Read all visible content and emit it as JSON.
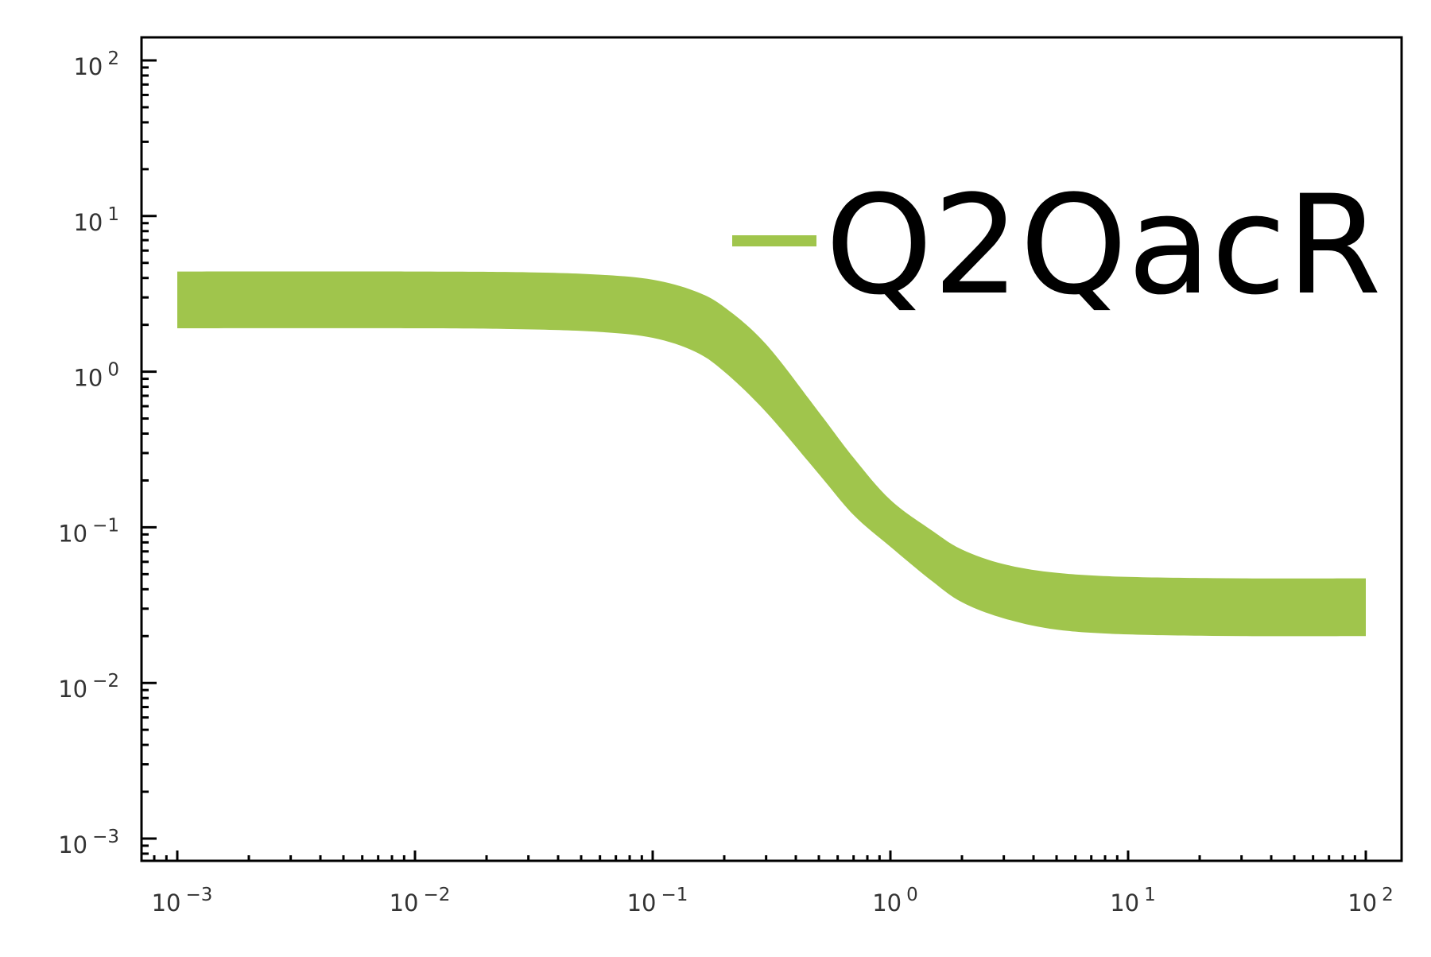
{
  "chart_data": {
    "type": "line",
    "title": "",
    "xlabel": "",
    "ylabel": "",
    "xscale": "log",
    "yscale": "log",
    "xlim": [
      0.001,
      100
    ],
    "ylim": [
      0.0007,
      200
    ],
    "grid": false,
    "legend_position": "top-right",
    "x_ticks": [
      {
        "base": "10",
        "exp": "−3"
      },
      {
        "base": "10",
        "exp": "−2"
      },
      {
        "base": "10",
        "exp": "−1"
      },
      {
        "base": "10",
        "exp": "0"
      },
      {
        "base": "10",
        "exp": "1"
      },
      {
        "base": "10",
        "exp": "2"
      }
    ],
    "y_ticks": [
      {
        "base": "10",
        "exp": "2"
      },
      {
        "base": "10",
        "exp": "1"
      },
      {
        "base": "10",
        "exp": "0"
      },
      {
        "base": "10",
        "exp": "−1"
      },
      {
        "base": "10",
        "exp": "−2"
      },
      {
        "base": "10",
        "exp": "−3"
      }
    ],
    "series": [
      {
        "name": "Q2QacR",
        "color": "#a0c54c",
        "band_lower": [
          [
            0.001,
            1.9
          ],
          [
            0.01,
            1.9
          ],
          [
            0.03,
            1.87
          ],
          [
            0.06,
            1.8
          ],
          [
            0.1,
            1.65
          ],
          [
            0.15,
            1.35
          ],
          [
            0.2,
            1.0
          ],
          [
            0.3,
            0.55
          ],
          [
            0.5,
            0.22
          ],
          [
            0.7,
            0.12
          ],
          [
            1.0,
            0.075
          ],
          [
            1.5,
            0.045
          ],
          [
            2.0,
            0.033
          ],
          [
            3.0,
            0.026
          ],
          [
            5.0,
            0.022
          ],
          [
            10,
            0.0205
          ],
          [
            30,
            0.02
          ],
          [
            100,
            0.02
          ]
        ],
        "band_upper": [
          [
            0.001,
            4.4
          ],
          [
            0.01,
            4.4
          ],
          [
            0.03,
            4.35
          ],
          [
            0.06,
            4.2
          ],
          [
            0.1,
            3.9
          ],
          [
            0.15,
            3.3
          ],
          [
            0.2,
            2.6
          ],
          [
            0.3,
            1.5
          ],
          [
            0.5,
            0.55
          ],
          [
            0.7,
            0.28
          ],
          [
            1.0,
            0.15
          ],
          [
            1.5,
            0.095
          ],
          [
            2.0,
            0.072
          ],
          [
            3.0,
            0.058
          ],
          [
            5.0,
            0.051
          ],
          [
            10,
            0.048
          ],
          [
            30,
            0.047
          ],
          [
            100,
            0.047
          ]
        ]
      }
    ]
  }
}
